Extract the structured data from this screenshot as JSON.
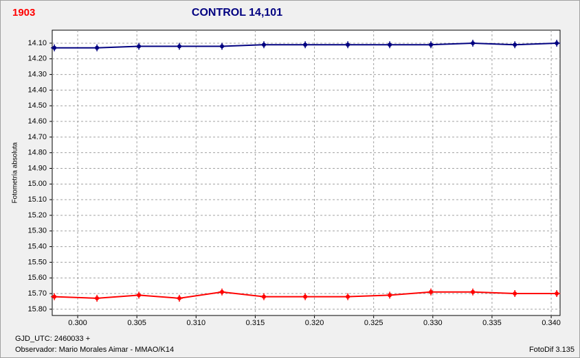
{
  "chart_data": {
    "type": "line",
    "label": "1903",
    "title": "CONTROL 14,101",
    "ylabel": "Fotometría absoluta",
    "xlabel": "GJD_UTC: 2460033 +",
    "footer_left": "Observador: Mario Morales Aimar - MMAO/K14",
    "footer_right": "FotoDif 3.135",
    "x": [
      0.29803,
      0.30163,
      0.30517,
      0.30859,
      0.31219,
      0.31573,
      0.31922,
      0.32282,
      0.32636,
      0.32984,
      0.33338,
      0.33693,
      0.34047
    ],
    "series": [
      {
        "name": "",
        "color": "#000080",
        "values": [
          14.13,
          14.13,
          14.12,
          14.12,
          14.12,
          14.11,
          14.11,
          14.11,
          14.11,
          14.11,
          14.1,
          14.11,
          14.1
        ]
      },
      {
        "name": "",
        "color": "#ff0000",
        "values": [
          15.72,
          15.73,
          15.71,
          15.73,
          15.69,
          15.72,
          15.72,
          15.72,
          15.71,
          15.69,
          15.69,
          15.7,
          15.7
        ]
      }
    ],
    "xlim": [
      0.29785,
      0.34075
    ],
    "xticks": [
      {
        "value": 0.3,
        "label": "0.300"
      },
      {
        "value": 0.305,
        "label": "0.305"
      },
      {
        "value": 0.31,
        "label": "0.310"
      },
      {
        "value": 0.315,
        "label": "0.315"
      },
      {
        "value": 0.32,
        "label": "0.320"
      },
      {
        "value": 0.325,
        "label": "0.325"
      },
      {
        "value": 0.33,
        "label": "0.330"
      },
      {
        "value": 0.335,
        "label": "0.335"
      },
      {
        "value": 0.34,
        "label": "0.340"
      }
    ],
    "ylim": [
      15.84,
      14.017
    ],
    "yticks": [
      {
        "value": 14.1,
        "label": "14.10"
      },
      {
        "value": 14.2,
        "label": "14.20"
      },
      {
        "value": 14.3,
        "label": "14.30"
      },
      {
        "value": 14.4,
        "label": "14.40"
      },
      {
        "value": 14.5,
        "label": "14.50"
      },
      {
        "value": 14.6,
        "label": "14.60"
      },
      {
        "value": 14.7,
        "label": "14.70"
      },
      {
        "value": 14.8,
        "label": "14.80"
      },
      {
        "value": 14.9,
        "label": "14.90"
      },
      {
        "value": 15.0,
        "label": "15.00"
      },
      {
        "value": 15.1,
        "label": "15.10"
      },
      {
        "value": 15.2,
        "label": "15.20"
      },
      {
        "value": 15.3,
        "label": "15.30"
      },
      {
        "value": 15.4,
        "label": "15.40"
      },
      {
        "value": 15.5,
        "label": "15.50"
      },
      {
        "value": 15.6,
        "label": "15.60"
      },
      {
        "value": 15.7,
        "label": "15.70"
      },
      {
        "value": 15.8,
        "label": "15.80"
      }
    ],
    "grid": true
  }
}
